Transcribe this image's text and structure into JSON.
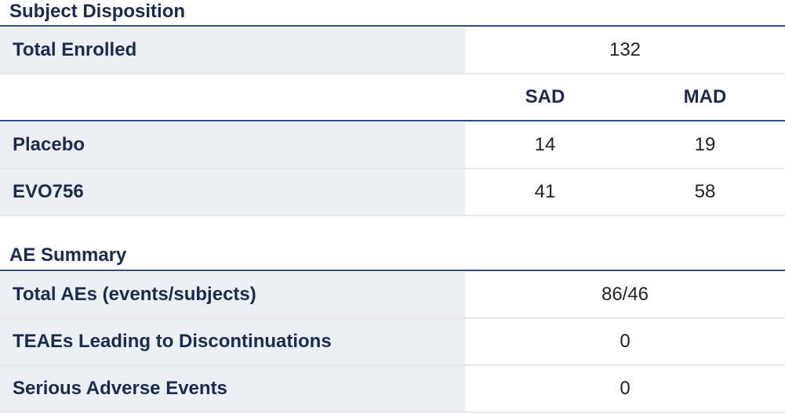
{
  "subject_disposition": {
    "title": "Subject Disposition",
    "total_enrolled": {
      "label": "Total Enrolled",
      "value": "132"
    },
    "columns": [
      "SAD",
      "MAD"
    ],
    "rows": [
      {
        "label": "Placebo",
        "sad": "14",
        "mad": "19"
      },
      {
        "label": "EVO756",
        "sad": "41",
        "mad": "58"
      }
    ]
  },
  "ae_summary": {
    "title": "AE Summary",
    "rows": [
      {
        "label": "Total AEs (events/subjects)",
        "value": "86/46"
      },
      {
        "label": "TEAEs Leading to Discontinuations",
        "value": "0"
      },
      {
        "label": "Serious Adverse Events",
        "value": "0"
      }
    ]
  }
}
